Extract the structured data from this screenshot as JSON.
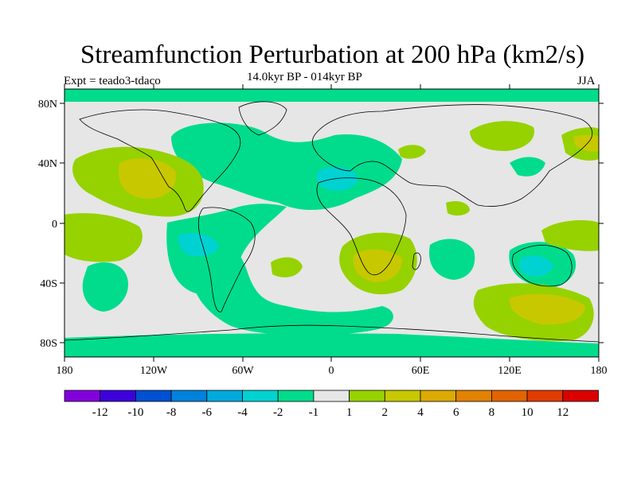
{
  "title": "Streamfunction Perturbation at 200 hPa (km2/s)",
  "subtitle": "14.0kyr BP - 014kyr BP",
  "left_label": "Expt = teado3-tdaco",
  "right_label": "JJA",
  "colors": {
    "background": "#e6e6e6",
    "land_outline": "#000000",
    "neg_1_2": "#00dc8c",
    "neg_2_4": "#00d2d2",
    "pos_1_2": "#96d200",
    "pos_2_4": "#c8c800"
  },
  "map": {
    "lat_labels": [
      "80N",
      "40N",
      "0",
      "40S",
      "80S"
    ],
    "lon_labels": [
      "180",
      "120W",
      "60W",
      "0",
      "60E",
      "120E",
      "180"
    ]
  },
  "colorbar": {
    "boxes": [
      {
        "color": "#8200dc"
      },
      {
        "color": "#3c00dc"
      },
      {
        "color": "#0050d2"
      },
      {
        "color": "#0082dc"
      },
      {
        "color": "#00aadc"
      },
      {
        "color": "#00d2d2"
      },
      {
        "color": "#00dc8c"
      },
      {
        "color": "#e6e6e6"
      },
      {
        "color": "#96d200"
      },
      {
        "color": "#c8c800"
      },
      {
        "color": "#dcaa00"
      },
      {
        "color": "#e18200"
      },
      {
        "color": "#e16400"
      },
      {
        "color": "#e13c00"
      },
      {
        "color": "#dc0000"
      }
    ],
    "labels": [
      "-12",
      "-10",
      "-8",
      "-6",
      "-4",
      "-2",
      "-1",
      "1",
      "2",
      "4",
      "6",
      "8",
      "10",
      "12"
    ]
  }
}
